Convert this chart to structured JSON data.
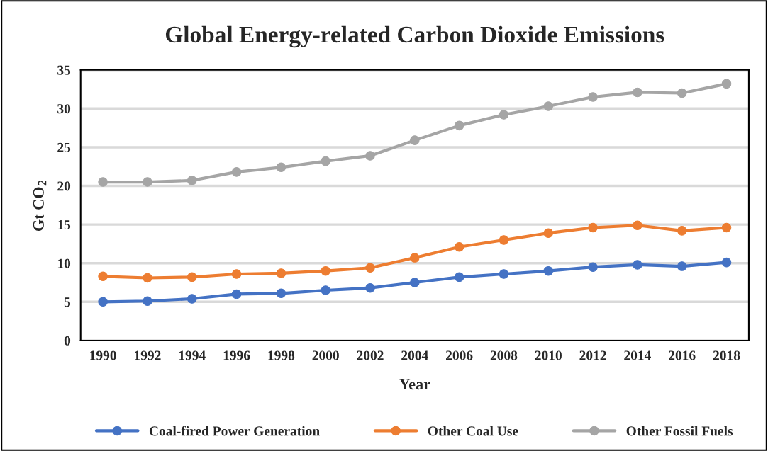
{
  "chart_data": {
    "type": "line",
    "title": "Global Energy-related Carbon Dioxide Emissions",
    "xlabel": "Year",
    "ylabel": "Gt CO$_{2}$",
    "categories": [
      "1990",
      "1992",
      "1994",
      "1996",
      "1998",
      "2000",
      "2002",
      "2004",
      "2006",
      "2008",
      "2010",
      "2012",
      "2014",
      "2016",
      "2018"
    ],
    "series": [
      {
        "name": "Coal-fired Power Generation",
        "color": "#4472c4",
        "values": [
          5.0,
          5.1,
          5.4,
          6.0,
          6.1,
          6.5,
          6.8,
          7.5,
          8.2,
          8.6,
          9.0,
          9.5,
          9.8,
          9.6,
          10.1
        ]
      },
      {
        "name": "Other Coal Use",
        "color": "#ed7d31",
        "values": [
          8.3,
          8.1,
          8.2,
          8.6,
          8.7,
          9.0,
          9.4,
          10.7,
          12.1,
          13.0,
          13.9,
          14.6,
          14.9,
          14.2,
          14.6
        ]
      },
      {
        "name": "Other Fossil Fuels",
        "color": "#a5a5a5",
        "values": [
          20.5,
          20.5,
          20.7,
          21.8,
          22.4,
          23.2,
          23.9,
          25.9,
          27.8,
          29.2,
          30.3,
          31.5,
          32.1,
          32.0,
          33.2
        ]
      }
    ],
    "ylim": [
      0,
      35
    ],
    "yticks": [
      0,
      5,
      10,
      15,
      20,
      25,
      30,
      35
    ],
    "grid": "y",
    "legend": "bottom",
    "marker": "circle",
    "line_style": "solid"
  }
}
